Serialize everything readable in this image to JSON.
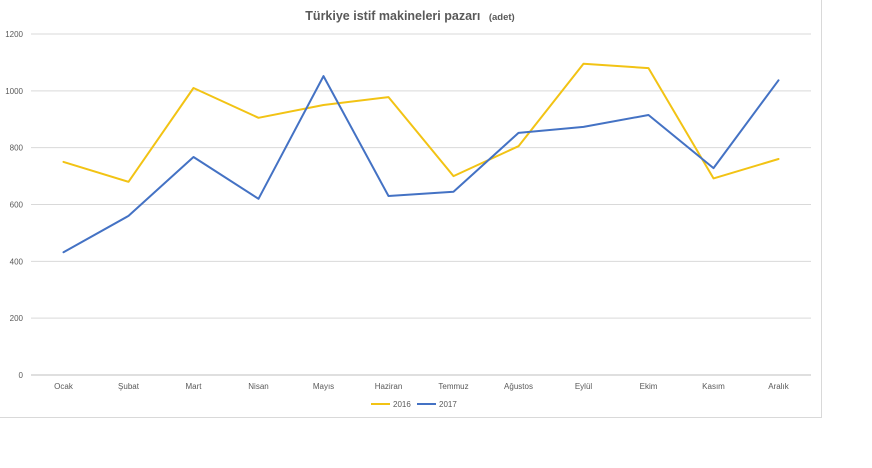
{
  "chart_data": {
    "type": "line",
    "title": "Türkiye istif makineleri pazarı",
    "subtitle": "(adet)",
    "categories": [
      "Ocak",
      "Şubat",
      "Mart",
      "Nisan",
      "Mayıs",
      "Haziran",
      "Temmuz",
      "Ağustos",
      "Eylül",
      "Ekim",
      "Kasım",
      "Aralık"
    ],
    "ylim": [
      0,
      1200
    ],
    "yticks": [
      0,
      200,
      400,
      600,
      800,
      1000,
      1200
    ],
    "grid": true,
    "legend_position": "bottom",
    "series": [
      {
        "name": "2016",
        "color": "#F2C314",
        "values": [
          750,
          680,
          1010,
          905,
          950,
          978,
          700,
          805,
          1095,
          1080,
          692,
          760
        ]
      },
      {
        "name": "2017",
        "color": "#4472C4",
        "values": [
          432,
          560,
          767,
          620,
          1052,
          630,
          645,
          852,
          873,
          915,
          728,
          1037
        ]
      }
    ]
  }
}
